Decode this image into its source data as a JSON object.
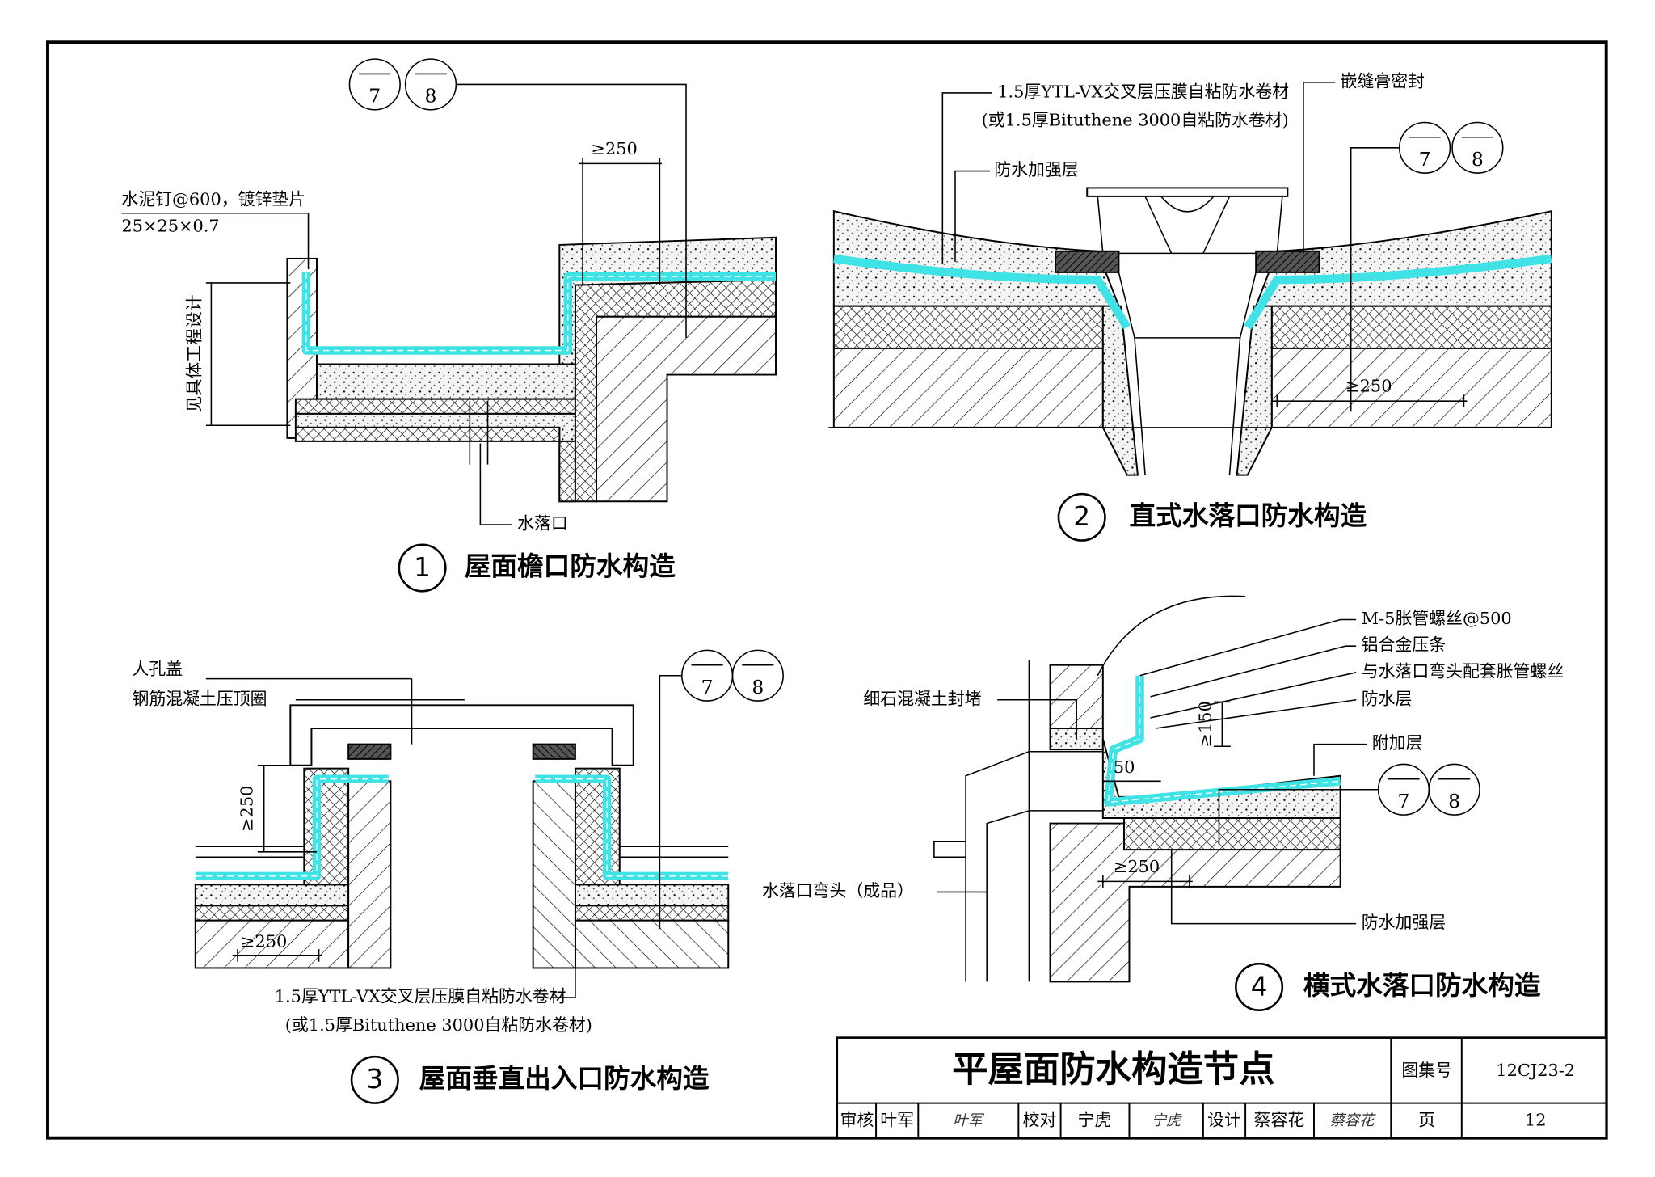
{
  "details": [
    {
      "number": "1",
      "title": "屋面檐口防水构造",
      "ref": [
        "7",
        "8"
      ],
      "labels": [
        "水泥钉@600，镀锌垫片",
        "25×25×0.7",
        "≥250",
        "见具体工程设计",
        "水落口"
      ]
    },
    {
      "number": "2",
      "title": "直式水落口防水构造",
      "ref": [
        "7",
        "8"
      ],
      "labels": [
        "1.5厚YTL-VX交叉层压膜自粘防水卷材",
        "(或1.5厚Bituthene 3000自粘防水卷材)",
        "嵌缝膏密封",
        "防水加强层",
        "≥250"
      ]
    },
    {
      "number": "3",
      "title": "屋面垂直出入口防水构造",
      "ref": [
        "7",
        "8"
      ],
      "labels": [
        "人孔盖",
        "钢筋混凝土压顶圈",
        "≥250",
        "≥250",
        "1.5厚YTL-VX交叉层压膜自粘防水卷材",
        "(或1.5厚Bituthene 3000自粘防水卷材)"
      ]
    },
    {
      "number": "4",
      "title": "横式水落口防水构造",
      "ref": [
        "7",
        "8"
      ],
      "labels": [
        "M-5胀管螺丝@500",
        "铝合金压条",
        "与水落口弯头配套胀管螺丝",
        "防水层",
        "附加层",
        "细石混凝土封堵",
        "≥150",
        "50",
        "水落口弯头（成品）",
        "≥250",
        "防水加强层"
      ]
    }
  ],
  "title_block": {
    "title": "平屋面防水构造节点",
    "atlas_label": "图集号",
    "atlas_no": "12CJ23-2",
    "reviewer_label": "审核",
    "reviewer": "叶军",
    "reviewer_sign": "叶军",
    "checker_label": "校对",
    "checker": "宁虎",
    "checker_sign": "宁虎",
    "designer_label": "设计",
    "designer": "蔡容花",
    "designer_sign": "蔡容花",
    "page_label": "页",
    "page": "12"
  }
}
